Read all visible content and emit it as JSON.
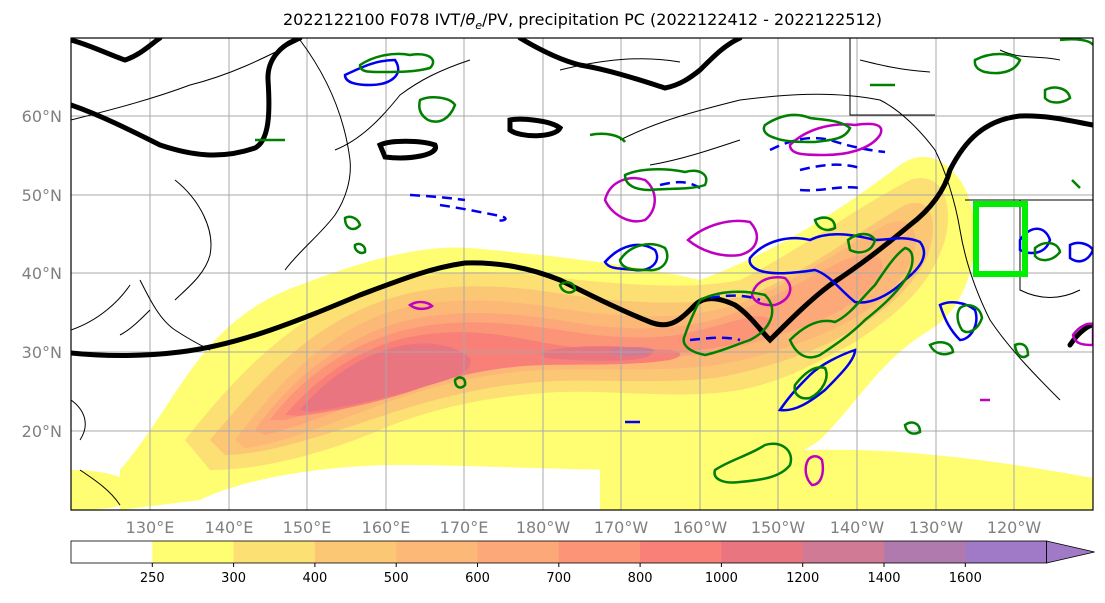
{
  "title": "2022122100 F078 IVT/θe/PV, precipitation PC (2022122412 - 2022122512)",
  "title_parts": {
    "prefix": "2022122100 F078 IVT/",
    "theta": "θ",
    "theta_sub": "e",
    "suffix": "/PV, precipitation PC (2022122412 - 2022122512)"
  },
  "map": {
    "lon_labels": [
      "130°E",
      "140°E",
      "150°E",
      "160°E",
      "170°E",
      "180°W",
      "170°W",
      "160°W",
      "150°W",
      "140°W",
      "130°W",
      "120°W"
    ],
    "lat_labels": [
      "60°N",
      "50°N",
      "40°N",
      "30°N",
      "20°N"
    ],
    "gridlines": true,
    "highlight_box_color": "#00ee00"
  },
  "colorbar": {
    "ticks": [
      "250",
      "300",
      "400",
      "500",
      "600",
      "700",
      "800",
      "1000",
      "1200",
      "1400",
      "1600"
    ],
    "colors": [
      "#ffffff",
      "#fffe72",
      "#fde074",
      "#fcc774",
      "#fcb877",
      "#fca878",
      "#fc9477",
      "#f88078",
      "#e97580",
      "#d07a95",
      "#b07aae",
      "#a07ac6"
    ],
    "extend": "max"
  },
  "contour_colors": {
    "theta_e": "#000000",
    "pv_blue": "#0000ee",
    "pv_magenta": "#c000c0",
    "precip": "#008000"
  }
}
